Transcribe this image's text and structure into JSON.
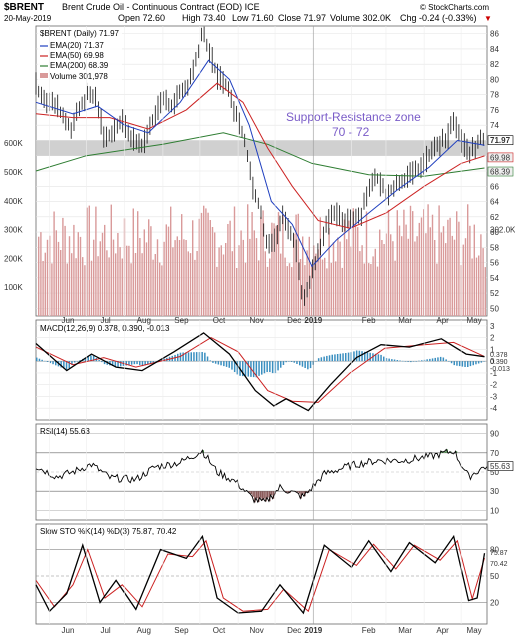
{
  "header": {
    "symbol": "$BRENT",
    "name": "Brent Crude Oil - Continuous Contract (EOD) ICE",
    "source": "© StockCharts.com",
    "date": "20-May-2019",
    "open": "Open 72.60",
    "high": "High 73.40",
    "low": "Low 71.60",
    "close": "Close 71.97",
    "volume": "Volume 302.0K",
    "change": "Chg -0.24 (-0.33%)",
    "change_marker": "▼"
  },
  "legend": {
    "price": "$BRENT (Daily) 71.97",
    "ema20": "EMA(20) 71.37",
    "ema50": "EMA(50) 69.98",
    "ema200": "EMA(200) 68.39",
    "volume": "Volume 301,978"
  },
  "annotation": {
    "line1": "Support-Resistance zone",
    "line2": "70 - 72"
  },
  "panels": {
    "macd_label": "MACD(12,26,9) 0.378, 0.390, -0.013",
    "rsi_label": "RSI(14) 55.63",
    "sto_label": "Slow STO %K(14) %D(3) 75.87, 70.42"
  },
  "colors": {
    "ema20": "#1f3fbf",
    "ema50": "#cc2222",
    "ema200": "#2e7d32",
    "volume": "#d99a9a",
    "zone": "#c8c8c8",
    "annotation": "#7a5cc8",
    "down_marker": "#cc0000"
  },
  "chart_data": {
    "type": "line",
    "x_months": [
      "Jun",
      "Jul",
      "Aug",
      "Sep",
      "Oct",
      "Nov",
      "Dec",
      "2019",
      "Feb",
      "Mar",
      "Apr",
      "May"
    ],
    "price": {
      "ylim": [
        49,
        87
      ],
      "ticks": [
        50,
        52,
        54,
        56,
        58,
        60,
        62,
        64,
        66,
        68,
        70,
        72,
        74,
        76,
        78,
        80,
        82,
        84,
        86
      ],
      "zone": [
        70,
        72
      ],
      "close_series": [
        {
          "x": "2018-05-21",
          "y": 79.2
        },
        {
          "x": "2018-05-31",
          "y": 77.0
        },
        {
          "x": "2018-06-07",
          "y": 76.5
        },
        {
          "x": "2018-06-18",
          "y": 73.5
        },
        {
          "x": "2018-06-25",
          "y": 76.0
        },
        {
          "x": "2018-07-02",
          "y": 78.0
        },
        {
          "x": "2018-07-09",
          "y": 77.5
        },
        {
          "x": "2018-07-16",
          "y": 72.0
        },
        {
          "x": "2018-07-23",
          "y": 73.5
        },
        {
          "x": "2018-07-30",
          "y": 74.5
        },
        {
          "x": "2018-08-08",
          "y": 72.0
        },
        {
          "x": "2018-08-16",
          "y": 71.4
        },
        {
          "x": "2018-08-23",
          "y": 74.5
        },
        {
          "x": "2018-08-31",
          "y": 77.5
        },
        {
          "x": "2018-09-07",
          "y": 76.5
        },
        {
          "x": "2018-09-14",
          "y": 78.0
        },
        {
          "x": "2018-09-21",
          "y": 79.0
        },
        {
          "x": "2018-09-28",
          "y": 82.5
        },
        {
          "x": "2018-10-03",
          "y": 86.2
        },
        {
          "x": "2018-10-08",
          "y": 84.0
        },
        {
          "x": "2018-10-15",
          "y": 80.5
        },
        {
          "x": "2018-10-22",
          "y": 79.5
        },
        {
          "x": "2018-10-29",
          "y": 76.0
        },
        {
          "x": "2018-11-06",
          "y": 72.5
        },
        {
          "x": "2018-11-13",
          "y": 66.0
        },
        {
          "x": "2018-11-20",
          "y": 62.5
        },
        {
          "x": "2018-11-23",
          "y": 59.0
        },
        {
          "x": "2018-11-30",
          "y": 58.5
        },
        {
          "x": "2018-12-07",
          "y": 62.0
        },
        {
          "x": "2018-12-14",
          "y": 60.0
        },
        {
          "x": "2018-12-19",
          "y": 57.0
        },
        {
          "x": "2018-12-24",
          "y": 50.5
        },
        {
          "x": "2018-12-28",
          "y": 53.0
        },
        {
          "x": "2019-01-04",
          "y": 57.0
        },
        {
          "x": "2019-01-11",
          "y": 60.5
        },
        {
          "x": "2019-01-18",
          "y": 62.5
        },
        {
          "x": "2019-01-25",
          "y": 61.5
        },
        {
          "x": "2019-02-01",
          "y": 62.0
        },
        {
          "x": "2019-02-08",
          "y": 62.0
        },
        {
          "x": "2019-02-15",
          "y": 66.0
        },
        {
          "x": "2019-02-22",
          "y": 67.0
        },
        {
          "x": "2019-03-01",
          "y": 65.0
        },
        {
          "x": "2019-03-08",
          "y": 66.0
        },
        {
          "x": "2019-03-15",
          "y": 67.0
        },
        {
          "x": "2019-03-22",
          "y": 67.5
        },
        {
          "x": "2019-03-29",
          "y": 68.5
        },
        {
          "x": "2019-04-05",
          "y": 70.0
        },
        {
          "x": "2019-04-12",
          "y": 71.5
        },
        {
          "x": "2019-04-19",
          "y": 72.0
        },
        {
          "x": "2019-04-25",
          "y": 74.8
        },
        {
          "x": "2019-05-01",
          "y": 72.0
        },
        {
          "x": "2019-05-07",
          "y": 70.5
        },
        {
          "x": "2019-05-13",
          "y": 70.8
        },
        {
          "x": "2019-05-16",
          "y": 72.5
        },
        {
          "x": "2019-05-20",
          "y": 71.97
        }
      ],
      "ema20": [
        {
          "x": "2018-05-21",
          "y": 77.0
        },
        {
          "x": "2018-06-20",
          "y": 75.5
        },
        {
          "x": "2018-07-10",
          "y": 76.5
        },
        {
          "x": "2018-08-01",
          "y": 74.0
        },
        {
          "x": "2018-08-20",
          "y": 73.0
        },
        {
          "x": "2018-09-15",
          "y": 77.0
        },
        {
          "x": "2018-10-08",
          "y": 82.5
        },
        {
          "x": "2018-10-25",
          "y": 80.0
        },
        {
          "x": "2018-11-10",
          "y": 74.0
        },
        {
          "x": "2018-11-28",
          "y": 64.0
        },
        {
          "x": "2018-12-15",
          "y": 61.0
        },
        {
          "x": "2018-12-31",
          "y": 55.5
        },
        {
          "x": "2019-01-20",
          "y": 59.0
        },
        {
          "x": "2019-02-15",
          "y": 62.5
        },
        {
          "x": "2019-03-10",
          "y": 65.5
        },
        {
          "x": "2019-04-05",
          "y": 68.5
        },
        {
          "x": "2019-04-28",
          "y": 72.0
        },
        {
          "x": "2019-05-20",
          "y": 71.37
        }
      ],
      "ema50": [
        {
          "x": "2018-05-21",
          "y": 75.5
        },
        {
          "x": "2018-06-20",
          "y": 75.0
        },
        {
          "x": "2018-07-20",
          "y": 75.0
        },
        {
          "x": "2018-08-20",
          "y": 73.5
        },
        {
          "x": "2018-09-20",
          "y": 76.0
        },
        {
          "x": "2018-10-15",
          "y": 79.5
        },
        {
          "x": "2018-11-05",
          "y": 77.0
        },
        {
          "x": "2018-11-25",
          "y": 71.0
        },
        {
          "x": "2018-12-15",
          "y": 66.0
        },
        {
          "x": "2019-01-05",
          "y": 61.5
        },
        {
          "x": "2019-01-31",
          "y": 60.5
        },
        {
          "x": "2019-03-01",
          "y": 62.5
        },
        {
          "x": "2019-04-01",
          "y": 66.0
        },
        {
          "x": "2019-05-01",
          "y": 69.0
        },
        {
          "x": "2019-05-20",
          "y": 69.98
        }
      ],
      "ema200": [
        {
          "x": "2018-05-21",
          "y": 68.0
        },
        {
          "x": "2018-07-01",
          "y": 70.0
        },
        {
          "x": "2018-09-01",
          "y": 71.5
        },
        {
          "x": "2018-10-20",
          "y": 73.0
        },
        {
          "x": "2018-11-25",
          "y": 71.5
        },
        {
          "x": "2018-12-31",
          "y": 69.0
        },
        {
          "x": "2019-02-15",
          "y": 67.5
        },
        {
          "x": "2019-04-01",
          "y": 67.3
        },
        {
          "x": "2019-05-20",
          "y": 68.39
        }
      ],
      "last_labels": [
        71.97,
        69.98,
        68.39
      ]
    },
    "volume": {
      "ylim": [
        0,
        750000
      ],
      "ticks": [
        {
          "v": 100000,
          "label": "100K"
        },
        {
          "v": 200000,
          "label": "200K"
        },
        {
          "v": 300000,
          "label": "300K"
        },
        {
          "v": 400000,
          "label": "400K"
        },
        {
          "v": 500000,
          "label": "500K"
        },
        {
          "v": 600000,
          "label": "600K"
        }
      ],
      "typical": 300000,
      "last_label": "302.0K"
    },
    "macd": {
      "ylim": [
        -5,
        3.5
      ],
      "ticks": [
        -4,
        -3,
        -2,
        -1,
        0,
        1,
        2,
        3
      ],
      "macd": [
        {
          "x": "2018-05-21",
          "y": 1.5
        },
        {
          "x": "2018-06-15",
          "y": -0.8
        },
        {
          "x": "2018-07-05",
          "y": 0.6
        },
        {
          "x": "2018-07-25",
          "y": -0.5
        },
        {
          "x": "2018-08-15",
          "y": -0.8
        },
        {
          "x": "2018-09-10",
          "y": 0.8
        },
        {
          "x": "2018-10-04",
          "y": 2.4
        },
        {
          "x": "2018-10-25",
          "y": 0.6
        },
        {
          "x": "2018-11-15",
          "y": -2.5
        },
        {
          "x": "2018-11-30",
          "y": -3.8
        },
        {
          "x": "2018-12-10",
          "y": -3.2
        },
        {
          "x": "2018-12-28",
          "y": -4.2
        },
        {
          "x": "2019-01-15",
          "y": -2.0
        },
        {
          "x": "2019-02-05",
          "y": 0.3
        },
        {
          "x": "2019-02-25",
          "y": 1.4
        },
        {
          "x": "2019-03-20",
          "y": 1.2
        },
        {
          "x": "2019-04-15",
          "y": 1.9
        },
        {
          "x": "2019-05-05",
          "y": 0.6
        },
        {
          "x": "2019-05-20",
          "y": 0.378
        }
      ],
      "signal": [
        {
          "x": "2018-05-21",
          "y": 1.2
        },
        {
          "x": "2018-06-20",
          "y": -0.3
        },
        {
          "x": "2018-07-15",
          "y": 0.3
        },
        {
          "x": "2018-08-10",
          "y": -0.5
        },
        {
          "x": "2018-09-15",
          "y": 0.4
        },
        {
          "x": "2018-10-10",
          "y": 2.0
        },
        {
          "x": "2018-11-01",
          "y": 0.8
        },
        {
          "x": "2018-11-25",
          "y": -2.5
        },
        {
          "x": "2018-12-15",
          "y": -3.4
        },
        {
          "x": "2019-01-05",
          "y": -3.5
        },
        {
          "x": "2019-01-31",
          "y": -1.0
        },
        {
          "x": "2019-02-28",
          "y": 1.1
        },
        {
          "x": "2019-04-01",
          "y": 1.4
        },
        {
          "x": "2019-04-25",
          "y": 1.6
        },
        {
          "x": "2019-05-20",
          "y": 0.39
        }
      ],
      "last_labels": [
        "0.378",
        "0.390",
        "-0.013"
      ]
    },
    "rsi": {
      "ylim": [
        0,
        100
      ],
      "ticks": [
        10,
        30,
        50,
        70,
        90
      ],
      "overbought": 70,
      "oversold": 30,
      "series": [
        {
          "x": "2018-05-21",
          "y": 56
        },
        {
          "x": "2018-06-07",
          "y": 45
        },
        {
          "x": "2018-06-20",
          "y": 50
        },
        {
          "x": "2018-07-05",
          "y": 58
        },
        {
          "x": "2018-07-20",
          "y": 44
        },
        {
          "x": "2018-08-10",
          "y": 42
        },
        {
          "x": "2018-08-25",
          "y": 55
        },
        {
          "x": "2018-09-15",
          "y": 60
        },
        {
          "x": "2018-10-03",
          "y": 72
        },
        {
          "x": "2018-10-15",
          "y": 50
        },
        {
          "x": "2018-10-30",
          "y": 40
        },
        {
          "x": "2018-11-13",
          "y": 22
        },
        {
          "x": "2018-11-23",
          "y": 18
        },
        {
          "x": "2018-12-05",
          "y": 34
        },
        {
          "x": "2018-12-24",
          "y": 24
        },
        {
          "x": "2019-01-10",
          "y": 48
        },
        {
          "x": "2019-02-01",
          "y": 57
        },
        {
          "x": "2019-02-22",
          "y": 62
        },
        {
          "x": "2019-03-15",
          "y": 62
        },
        {
          "x": "2019-04-05",
          "y": 66
        },
        {
          "x": "2019-04-25",
          "y": 72
        },
        {
          "x": "2019-05-07",
          "y": 45
        },
        {
          "x": "2019-05-20",
          "y": 55.63
        }
      ],
      "last_label": "55.63"
    },
    "sto": {
      "ylim": [
        0,
        100
      ],
      "ticks": [
        20,
        50,
        80
      ],
      "k": [
        {
          "x": "2018-05-21",
          "y": 40
        },
        {
          "x": "2018-06-01",
          "y": 10
        },
        {
          "x": "2018-06-15",
          "y": 30
        },
        {
          "x": "2018-06-28",
          "y": 85
        },
        {
          "x": "2018-07-12",
          "y": 20
        },
        {
          "x": "2018-07-25",
          "y": 45
        },
        {
          "x": "2018-08-10",
          "y": 12
        },
        {
          "x": "2018-08-30",
          "y": 80
        },
        {
          "x": "2018-09-20",
          "y": 70
        },
        {
          "x": "2018-10-03",
          "y": 95
        },
        {
          "x": "2018-10-15",
          "y": 25
        },
        {
          "x": "2018-11-01",
          "y": 8
        },
        {
          "x": "2018-11-20",
          "y": 10
        },
        {
          "x": "2018-12-05",
          "y": 40
        },
        {
          "x": "2018-12-24",
          "y": 8
        },
        {
          "x": "2019-01-10",
          "y": 85
        },
        {
          "x": "2019-02-01",
          "y": 60
        },
        {
          "x": "2019-02-15",
          "y": 90
        },
        {
          "x": "2019-03-05",
          "y": 55
        },
        {
          "x": "2019-03-20",
          "y": 88
        },
        {
          "x": "2019-04-10",
          "y": 65
        },
        {
          "x": "2019-04-25",
          "y": 95
        },
        {
          "x": "2019-05-07",
          "y": 22
        },
        {
          "x": "2019-05-14",
          "y": 25
        },
        {
          "x": "2019-05-20",
          "y": 75.87
        }
      ],
      "d": [
        {
          "x": "2018-05-21",
          "y": 45
        },
        {
          "x": "2018-06-05",
          "y": 15
        },
        {
          "x": "2018-06-20",
          "y": 40
        },
        {
          "x": "2018-07-02",
          "y": 80
        },
        {
          "x": "2018-07-16",
          "y": 25
        },
        {
          "x": "2018-07-30",
          "y": 40
        },
        {
          "x": "2018-08-15",
          "y": 15
        },
        {
          "x": "2018-09-05",
          "y": 75
        },
        {
          "x": "2018-09-25",
          "y": 72
        },
        {
          "x": "2018-10-06",
          "y": 90
        },
        {
          "x": "2018-10-20",
          "y": 25
        },
        {
          "x": "2018-11-05",
          "y": 10
        },
        {
          "x": "2018-11-25",
          "y": 12
        },
        {
          "x": "2018-12-08",
          "y": 35
        },
        {
          "x": "2018-12-28",
          "y": 10
        },
        {
          "x": "2019-01-14",
          "y": 80
        },
        {
          "x": "2019-02-05",
          "y": 62
        },
        {
          "x": "2019-02-19",
          "y": 86
        },
        {
          "x": "2019-03-09",
          "y": 58
        },
        {
          "x": "2019-03-24",
          "y": 85
        },
        {
          "x": "2019-04-14",
          "y": 68
        },
        {
          "x": "2019-04-28",
          "y": 90
        },
        {
          "x": "2019-05-10",
          "y": 24
        },
        {
          "x": "2019-05-20",
          "y": 70.42
        }
      ],
      "last_labels": [
        "75.87",
        "70.42"
      ]
    }
  }
}
